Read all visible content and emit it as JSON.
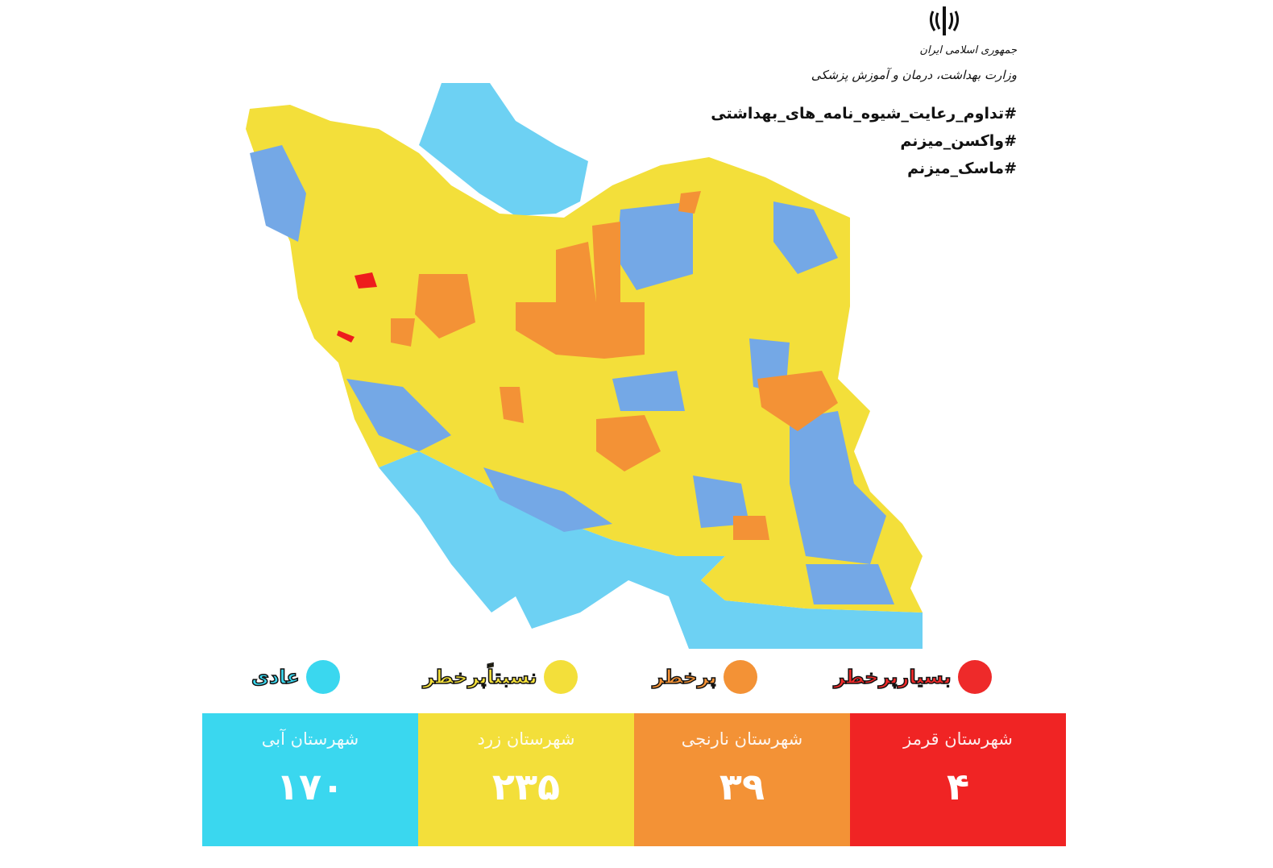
{
  "header": {
    "emblem_icon": "iran-emblem-icon",
    "org_line1": "جمهوری اسلامی ایران",
    "org_line2": "وزارت بهداشت، درمان و آموزش پزشکی",
    "hashtags": [
      "#تداوم_رعایت_شیوه_نامه_های_بهداشتی",
      "#واکسن_میزنم",
      "#ماسک_میزنم"
    ]
  },
  "legend": [
    {
      "label": "بسیارپرخطر",
      "color": "#ee2a2a"
    },
    {
      "label": "پرخطر",
      "color": "#f39236"
    },
    {
      "label": "نسبتاًپرخطر",
      "color": "#f3df3a"
    },
    {
      "label": "عادی",
      "color": "#3ad7ef"
    }
  ],
  "cards": [
    {
      "title": "شهرستان قرمز",
      "count": "۴",
      "color": "#f02424"
    },
    {
      "title": "شهرستان نارنجی",
      "count": "۳۹",
      "color": "#f39236"
    },
    {
      "title": "شهرستان زرد",
      "count": "۲۳۵",
      "color": "#f3df3a"
    },
    {
      "title": "شهرستان آبی",
      "count": "۱۷۰",
      "color": "#3ad7ef"
    }
  ],
  "map_colors": {
    "sea": "#6dd1f3",
    "blue": "#74a8e6",
    "yellow": "#f3df3a",
    "orange": "#f39236",
    "red": "#ee1c1c"
  }
}
